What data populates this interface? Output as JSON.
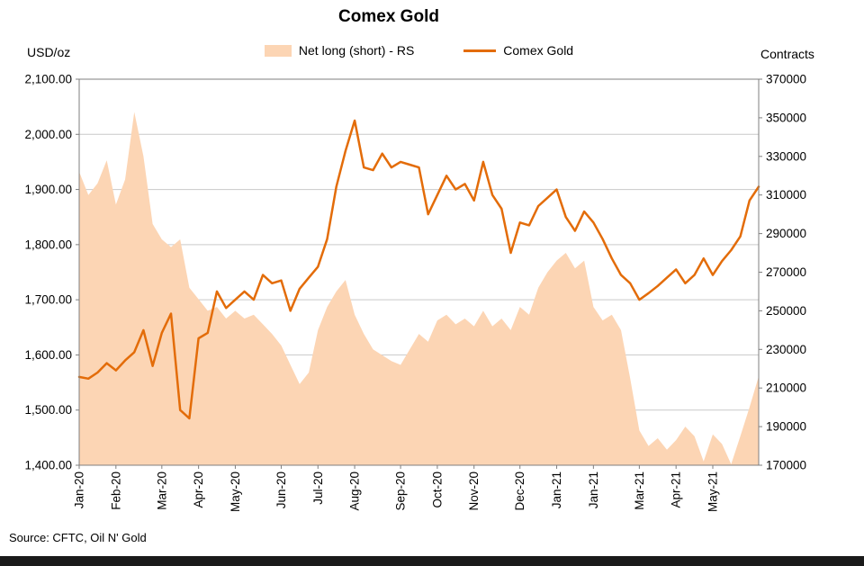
{
  "page": {
    "source": "Source: CFTC, Oil N' Gold"
  },
  "chart_data": {
    "type": "line+area",
    "title": "Comex Gold",
    "legend_position": "top",
    "grid": "horizontal",
    "n_points": 75,
    "x_labels": [
      "Jan-20",
      "Feb-20",
      "Mar-20",
      "Apr-20",
      "May-20",
      "Jun-20",
      "Jul-20",
      "Aug-20",
      "Sep-20",
      "Oct-20",
      "Nov-20",
      "Dec-20",
      "Jan-21",
      "Jan-21",
      "Mar-21",
      "Apr-21",
      "May-21"
    ],
    "x_label_indices": [
      0,
      4,
      9,
      13,
      17,
      22,
      26,
      30,
      35,
      39,
      43,
      48,
      52,
      56,
      61,
      65,
      69
    ],
    "left_axis": {
      "label": "USD/oz",
      "min": 1400,
      "max": 2100,
      "step": 100,
      "ticks": [
        "2,100.00",
        "2,000.00",
        "1,900.00",
        "1,800.00",
        "1,700.00",
        "1,600.00",
        "1,500.00",
        "1,400.00"
      ]
    },
    "right_axis": {
      "label": "Contracts",
      "min": 170000,
      "max": 370000,
      "step": 20000,
      "ticks": [
        "370000",
        "350000",
        "330000",
        "310000",
        "290000",
        "270000",
        "250000",
        "230000",
        "210000",
        "190000",
        "170000"
      ]
    },
    "series": [
      {
        "name": "Net long (short) - RS",
        "type": "area",
        "axis": "right",
        "color": "#FCD5B4",
        "values": [
          322000,
          310000,
          316000,
          328000,
          305000,
          318000,
          353000,
          330000,
          295000,
          287000,
          283000,
          287000,
          262000,
          256000,
          250000,
          252000,
          246000,
          250000,
          246000,
          248000,
          243000,
          238000,
          232000,
          222000,
          212000,
          218000,
          240000,
          252000,
          260000,
          266000,
          248000,
          238000,
          230000,
          227000,
          224000,
          222000,
          230000,
          238000,
          234000,
          245000,
          248000,
          243000,
          246000,
          242000,
          250000,
          242000,
          246000,
          240000,
          252000,
          248000,
          262000,
          270000,
          276000,
          280000,
          272000,
          276000,
          252000,
          245000,
          248000,
          240000,
          215000,
          188000,
          180000,
          184000,
          178000,
          183000,
          190000,
          185000,
          172000,
          186000,
          181000,
          170500,
          185000,
          200000,
          216000
        ]
      },
      {
        "name": "Comex Gold",
        "type": "line",
        "axis": "left",
        "color": "#E36C09",
        "values": [
          1560,
          1557,
          1568,
          1585,
          1572,
          1590,
          1605,
          1645,
          1580,
          1640,
          1675,
          1500,
          1485,
          1630,
          1640,
          1715,
          1685,
          1700,
          1715,
          1700,
          1745,
          1730,
          1735,
          1680,
          1720,
          1740,
          1760,
          1810,
          1905,
          1970,
          2025,
          1940,
          1935,
          1965,
          1940,
          1950,
          1945,
          1940,
          1855,
          1890,
          1925,
          1900,
          1910,
          1880,
          1950,
          1890,
          1865,
          1785,
          1840,
          1835,
          1870,
          1885,
          1900,
          1850,
          1825,
          1860,
          1840,
          1810,
          1775,
          1745,
          1730,
          1700,
          1712,
          1725,
          1740,
          1755,
          1730,
          1745,
          1775,
          1745,
          1770,
          1790,
          1815,
          1880,
          1905
        ]
      }
    ],
    "colors": {
      "gridline": "#C9C9C9",
      "plot_border": "#7F7F7F",
      "text": "#000000"
    }
  }
}
